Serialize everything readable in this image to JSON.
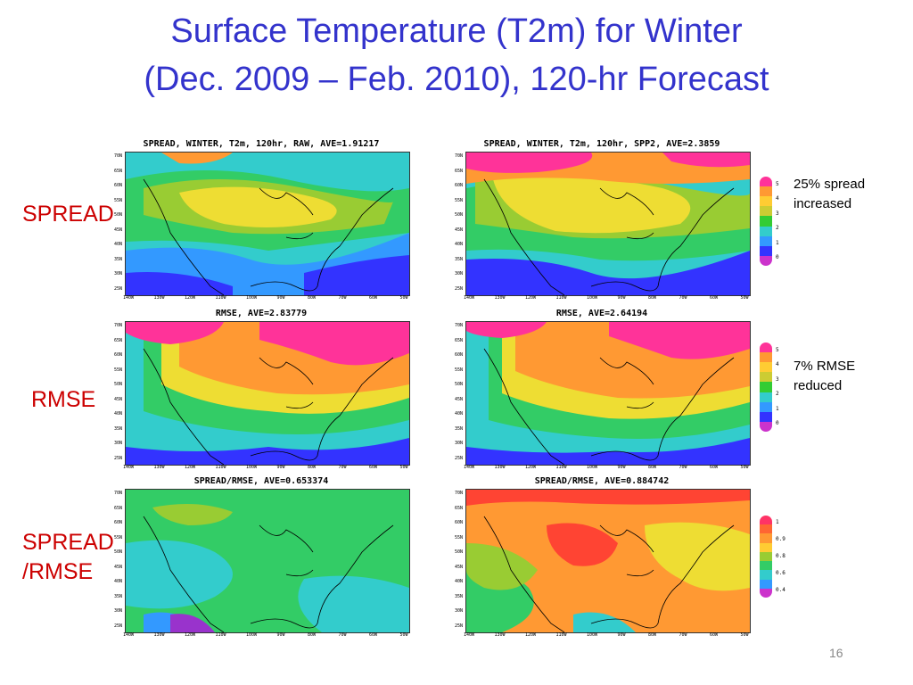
{
  "slide": {
    "title_line1": "Surface Temperature (T2m) for Winter",
    "title_line2": "(Dec. 2009 – Feb. 2010), 120-hr Forecast",
    "page_number": "16"
  },
  "row_labels": [
    "SPREAD",
    "RMSE",
    "SPREAD\n/RMSE"
  ],
  "panels": [
    {
      "title": "SPREAD, WINTER, T2m, 120hr, RAW, AVE=1.91217",
      "style": "spread_low"
    },
    {
      "title": "SPREAD, WINTER, T2m, 120hr, SPP2, AVE=2.3859",
      "style": "spread_high"
    },
    {
      "title": "RMSE, AVE=2.83779",
      "style": "rmse_a"
    },
    {
      "title": "RMSE, AVE=2.64194",
      "style": "rmse_b"
    },
    {
      "title": "SPREAD/RMSE, AVE=0.653374",
      "style": "ratio_low"
    },
    {
      "title": "SPREAD/RMSE, AVE=0.884742",
      "style": "ratio_high"
    }
  ],
  "lat_labels": [
    "70N",
    "65N",
    "60N",
    "55N",
    "50N",
    "45N",
    "40N",
    "35N",
    "30N",
    "25N"
  ],
  "lon_labels": [
    "140W",
    "130W",
    "120W",
    "110W",
    "100W",
    "90W",
    "80W",
    "70W",
    "60W",
    "50W"
  ],
  "colorbars": [
    {
      "ticks": [
        "5",
        "4",
        "3",
        "2",
        "1",
        "0"
      ],
      "colors": [
        "#ff3399",
        "#ff9933",
        "#ffcc33",
        "#cccc33",
        "#33cc33",
        "#33cccc",
        "#3399ff",
        "#3333ff",
        "#cc33cc"
      ]
    },
    {
      "ticks": [
        "5",
        "4",
        "3",
        "2",
        "1",
        "0"
      ],
      "colors": [
        "#ff3399",
        "#ff9933",
        "#ffcc33",
        "#cccc33",
        "#33cc33",
        "#33cccc",
        "#3399ff",
        "#3333ff",
        "#cc33cc"
      ]
    },
    {
      "ticks": [
        "1",
        "0.9",
        "0.8",
        "0.6",
        "0.4"
      ],
      "colors": [
        "#ff3366",
        "#ff6633",
        "#ff9933",
        "#ffcc33",
        "#99cc33",
        "#33cc66",
        "#33cccc",
        "#3399ff",
        "#cc33cc"
      ]
    }
  ],
  "notes": [
    "25% spread\nincreased",
    "7% RMSE\nreduced"
  ],
  "colors": {
    "title": "#3333cc",
    "row_label": "#cc0000",
    "palette": {
      "magenta": "#ff3399",
      "orange": "#ff9933",
      "yellow": "#eedd33",
      "lime": "#99cc33",
      "green": "#33cc66",
      "cyan": "#33cccc",
      "lightblue": "#3399ff",
      "blue": "#3333ff",
      "purple": "#9933cc",
      "red": "#ff4433"
    }
  }
}
